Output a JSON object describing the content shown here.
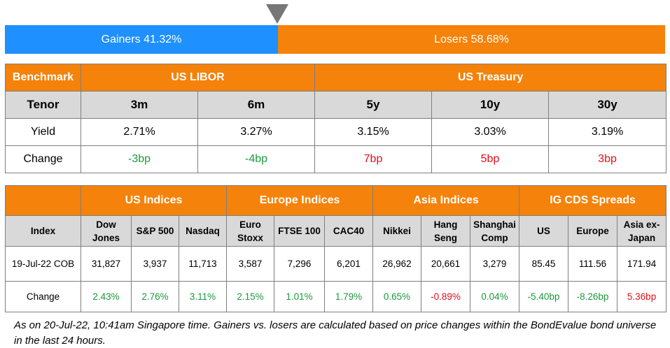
{
  "sentiment": {
    "gainers_label": "Gainers 41.32%",
    "losers_label": "Losers 58.68%",
    "gainers_pct": 41.32,
    "losers_pct": 58.68,
    "colors": {
      "gainers": "#1e90ff",
      "losers": "#f5820a"
    }
  },
  "rates": {
    "headers": {
      "benchmark": "Benchmark",
      "libor": "US LIBOR",
      "treasury": "US Treasury"
    },
    "tenor_label": "Tenor",
    "tenors": [
      "3m",
      "6m",
      "5y",
      "10y",
      "30y"
    ],
    "yield_label": "Yield",
    "yields": [
      "2.71%",
      "3.27%",
      "3.15%",
      "3.03%",
      "3.19%"
    ],
    "change_label": "Change",
    "changes": [
      "-3bp",
      "-4bp",
      "7bp",
      "5bp",
      "3bp"
    ]
  },
  "indices": {
    "groups": [
      "US Indices",
      "Europe Indices",
      "Asia Indices",
      "IG CDS Spreads"
    ],
    "index_label": "Index",
    "columns": [
      "Dow Jones",
      "S&P 500",
      "Nasdaq",
      "Euro Stoxx",
      "FTSE 100",
      "CAC40",
      "Nikkei",
      "Hang Seng",
      "Shanghai Comp",
      "US",
      "Europe",
      "Asia ex-Japan"
    ],
    "date_label": "19-Jul-22 COB",
    "values": [
      "31,827",
      "3,937",
      "11,713",
      "3,587",
      "7,296",
      "6,201",
      "26,962",
      "20,661",
      "3,279",
      "85.45",
      "111.56",
      "171.94"
    ],
    "change_label": "Change",
    "changes": [
      "2.43%",
      "2.76%",
      "3.11%",
      "2.15%",
      "1.01%",
      "1.79%",
      "0.65%",
      "-0.89%",
      "0.04%",
      "-5.40bp",
      "-8.26bp",
      "5.36bp"
    ]
  },
  "footnote": "As on 20-Jul-22, 10:41am Singapore time. Gainers vs. losers are calculated based on price changes within the BondEvalue bond universe in the last 24 hours.",
  "colors": {
    "header": "#f5820a",
    "subheader": "#d9d9d9",
    "positive": "#1a9a3c",
    "negative": "#e0101a"
  }
}
